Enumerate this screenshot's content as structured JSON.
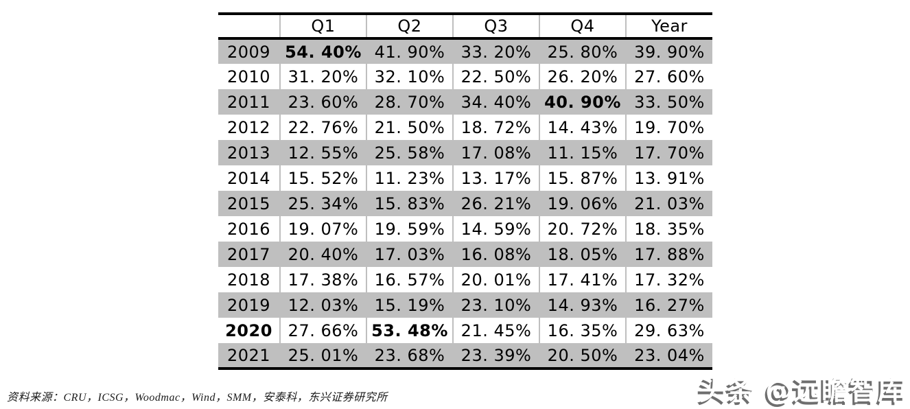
{
  "colors": {
    "row_shade": "#bfbfbf",
    "cell_separator": "#bfbfbf",
    "table_border": "#000000",
    "watermark_shadow": "#6e6e6e"
  },
  "table": {
    "header": [
      "",
      "Q1",
      "Q2",
      "Q3",
      "Q4",
      "Year"
    ],
    "rows": [
      {
        "label": "2009",
        "label_bold": false,
        "cells": [
          "54. 40%",
          "41. 90%",
          "33. 20%",
          "25. 80%",
          "39. 90%"
        ],
        "bold": [
          0
        ]
      },
      {
        "label": "2010",
        "label_bold": false,
        "cells": [
          "31. 20%",
          "32. 10%",
          "22. 50%",
          "26. 20%",
          "27. 60%"
        ],
        "bold": []
      },
      {
        "label": "2011",
        "label_bold": false,
        "cells": [
          "23. 60%",
          "28. 70%",
          "34. 40%",
          "40. 90%",
          "33. 50%"
        ],
        "bold": [
          3
        ]
      },
      {
        "label": "2012",
        "label_bold": false,
        "cells": [
          "22. 76%",
          "21. 50%",
          "18. 72%",
          "14. 43%",
          "19. 70%"
        ],
        "bold": []
      },
      {
        "label": "2013",
        "label_bold": false,
        "cells": [
          "12. 55%",
          "25. 58%",
          "17. 08%",
          "11. 15%",
          "17. 70%"
        ],
        "bold": []
      },
      {
        "label": "2014",
        "label_bold": false,
        "cells": [
          "15. 52%",
          "11. 23%",
          "13. 17%",
          "15. 87%",
          "13. 91%"
        ],
        "bold": []
      },
      {
        "label": "2015",
        "label_bold": false,
        "cells": [
          "25. 34%",
          "15. 83%",
          "26. 21%",
          "19. 06%",
          "21. 03%"
        ],
        "bold": []
      },
      {
        "label": "2016",
        "label_bold": false,
        "cells": [
          "19. 07%",
          "19. 59%",
          "14. 59%",
          "20. 72%",
          "18. 35%"
        ],
        "bold": []
      },
      {
        "label": "2017",
        "label_bold": false,
        "cells": [
          "20. 40%",
          "17. 03%",
          "16. 08%",
          "18. 05%",
          "17. 88%"
        ],
        "bold": []
      },
      {
        "label": "2018",
        "label_bold": false,
        "cells": [
          "17. 38%",
          "16. 57%",
          "20. 01%",
          "17. 41%",
          "17. 32%"
        ],
        "bold": []
      },
      {
        "label": "2019",
        "label_bold": false,
        "cells": [
          "12. 03%",
          "15. 19%",
          "23. 10%",
          "14. 93%",
          "16. 27%"
        ],
        "bold": []
      },
      {
        "label": "2020",
        "label_bold": true,
        "cells": [
          "27. 66%",
          "53. 48%",
          "21. 45%",
          "16. 35%",
          "29. 63%"
        ],
        "bold": [
          1
        ]
      },
      {
        "label": "2021",
        "label_bold": false,
        "cells": [
          "25. 01%",
          "23. 68%",
          "23. 39%",
          "20. 50%",
          "23. 04%"
        ],
        "bold": []
      }
    ]
  },
  "chart_data": {
    "type": "table",
    "title": "",
    "categories": [
      "2009",
      "2010",
      "2011",
      "2012",
      "2013",
      "2014",
      "2015",
      "2016",
      "2017",
      "2018",
      "2019",
      "2020",
      "2021"
    ],
    "unit": "%",
    "series": [
      {
        "name": "Q1",
        "values": [
          54.4,
          31.2,
          23.6,
          22.76,
          12.55,
          15.52,
          25.34,
          19.07,
          20.4,
          17.38,
          12.03,
          27.66,
          25.01
        ]
      },
      {
        "name": "Q2",
        "values": [
          41.9,
          32.1,
          28.7,
          21.5,
          25.58,
          11.23,
          15.83,
          19.59,
          17.03,
          16.57,
          15.19,
          53.48,
          23.68
        ]
      },
      {
        "name": "Q3",
        "values": [
          33.2,
          22.5,
          34.4,
          18.72,
          17.08,
          13.17,
          26.21,
          14.59,
          16.08,
          20.01,
          23.1,
          21.45,
          23.39
        ]
      },
      {
        "name": "Q4",
        "values": [
          25.8,
          26.2,
          40.9,
          14.43,
          11.15,
          15.87,
          19.06,
          20.72,
          18.05,
          17.41,
          14.93,
          16.35,
          20.5
        ]
      },
      {
        "name": "Year",
        "values": [
          39.9,
          27.6,
          33.5,
          19.7,
          17.7,
          13.91,
          21.03,
          18.35,
          17.88,
          17.32,
          16.27,
          29.63,
          23.04
        ]
      }
    ],
    "highlighted_cells": [
      {
        "row": "2009",
        "column": "Q1",
        "value": 54.4
      },
      {
        "row": "2011",
        "column": "Q4",
        "value": 40.9
      },
      {
        "row": "2020",
        "column": "Q2",
        "value": 53.48
      }
    ],
    "layout": {
      "shaded_rows": "odd years starting 2009",
      "shade_color": "#bfbfbf",
      "border_style": "thick black top, header-bottom and bottom rules"
    }
  },
  "footer": {
    "source": "资料来源：CRU，ICSG，Woodmac，Wind，SMM，安泰科，东兴证券研究所"
  },
  "watermark": {
    "text": "头条 @远瞻智库"
  }
}
